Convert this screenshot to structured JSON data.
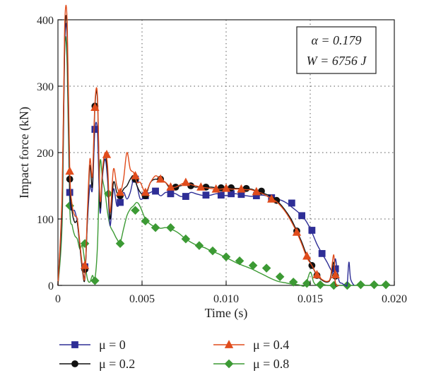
{
  "chart_data": {
    "type": "line",
    "xlabel": "Time (s)",
    "ylabel": "Impact force (kN)",
    "xlim": [
      0,
      0.02
    ],
    "ylim": [
      0,
      400
    ],
    "x_ticks": [
      "0",
      "0.005",
      "0.010",
      "0.015",
      "0.020"
    ],
    "y_ticks": [
      "0",
      "100",
      "200",
      "300",
      "400"
    ],
    "grid": true,
    "annotation": {
      "line1": "α = 0.179",
      "line2": "W = 6756 J"
    },
    "legend_position": "bottom",
    "series": [
      {
        "name": "μ = 0",
        "color": "#2e2e96",
        "marker": "square",
        "x": [
          0,
          0.00025,
          0.0004,
          0.00055,
          0.0007,
          0.00085,
          0.001,
          0.00115,
          0.0013,
          0.00145,
          0.0016,
          0.00175,
          0.0019,
          0.00205,
          0.0022,
          0.00235,
          0.0025,
          0.00265,
          0.0028,
          0.00295,
          0.0031,
          0.0033,
          0.0035,
          0.0037,
          0.0039,
          0.0041,
          0.0043,
          0.0045,
          0.0047,
          0.0049,
          0.0052,
          0.0055,
          0.0058,
          0.0061,
          0.0064,
          0.0067,
          0.007,
          0.0073,
          0.0076,
          0.0079,
          0.0082,
          0.0085,
          0.0088,
          0.0091,
          0.0094,
          0.0097,
          0.01,
          0.0103,
          0.0106,
          0.0109,
          0.0112,
          0.0115,
          0.0118,
          0.0121,
          0.0124,
          0.0127,
          0.013,
          0.0133,
          0.0136,
          0.0139,
          0.0142,
          0.0145,
          0.0148,
          0.0151,
          0.0154,
          0.0157,
          0.016,
          0.0162,
          0.0164,
          0.0165,
          0.0167,
          0.0169,
          0.0171,
          0.0172,
          0.0173,
          0.0174,
          0.0176
        ],
        "y": [
          0,
          120,
          360,
          370,
          140,
          115,
          112,
          95,
          60,
          28,
          15,
          95,
          150,
          145,
          235,
          230,
          110,
          165,
          190,
          160,
          90,
          145,
          120,
          125,
          140,
          130,
          140,
          160,
          150,
          130,
          135,
          140,
          142,
          135,
          140,
          140,
          138,
          134,
          135,
          140,
          138,
          136,
          135,
          136,
          138,
          137,
          135,
          137,
          138,
          136,
          135,
          134,
          135,
          136,
          135,
          132,
          130,
          128,
          124,
          118,
          112,
          105,
          95,
          80,
          62,
          48,
          35,
          25,
          18,
          40,
          8,
          3,
          0,
          2,
          35,
          10,
          0
        ],
        "marker_x": [
          0.0007,
          0.0016,
          0.0022,
          0.0037,
          0.0046,
          0.0052,
          0.0058,
          0.0067,
          0.0076,
          0.0088,
          0.0097,
          0.0103,
          0.0109,
          0.0118,
          0.0127,
          0.0139,
          0.0145,
          0.0151,
          0.0157,
          0.0165
        ],
        "marker_y": [
          140,
          28,
          235,
          125,
          160,
          135,
          142,
          138,
          134,
          136,
          136,
          138,
          137,
          135,
          132,
          124,
          105,
          83,
          48,
          25
        ]
      },
      {
        "name": "μ = 0.2",
        "color": "#111111",
        "marker": "circle",
        "x": [
          0,
          0.00025,
          0.0004,
          0.00055,
          0.0007,
          0.00085,
          0.001,
          0.00115,
          0.0013,
          0.00145,
          0.0016,
          0.00175,
          0.0019,
          0.00205,
          0.0022,
          0.00235,
          0.0025,
          0.00265,
          0.0028,
          0.00295,
          0.0031,
          0.0033,
          0.0035,
          0.0037,
          0.0039,
          0.0041,
          0.0043,
          0.0045,
          0.0047,
          0.0049,
          0.0052,
          0.0055,
          0.0058,
          0.0061,
          0.0064,
          0.0067,
          0.007,
          0.0073,
          0.0076,
          0.0079,
          0.0082,
          0.0085,
          0.0088,
          0.0091,
          0.0094,
          0.0097,
          0.01,
          0.0103,
          0.0106,
          0.0109,
          0.0112,
          0.0115,
          0.0118,
          0.0121,
          0.0124,
          0.0127,
          0.013,
          0.0133,
          0.0136,
          0.0139,
          0.0142,
          0.0145,
          0.0148,
          0.0151,
          0.0154,
          0.0157,
          0.016,
          0.0162,
          0.0164,
          0.0165,
          0.0167
        ],
        "y": [
          0,
          130,
          375,
          380,
          160,
          110,
          95,
          95,
          60,
          24,
          10,
          100,
          180,
          150,
          270,
          280,
          120,
          170,
          195,
          170,
          100,
          155,
          140,
          135,
          145,
          150,
          160,
          165,
          150,
          140,
          135,
          155,
          160,
          158,
          155,
          145,
          148,
          150,
          152,
          150,
          148,
          149,
          148,
          148,
          147,
          147,
          148,
          147,
          146,
          146,
          145,
          145,
          142,
          140,
          137,
          134,
          128,
          120,
          110,
          98,
          82,
          65,
          45,
          30,
          15,
          8,
          5,
          10,
          35,
          2,
          0
        ],
        "marker_x": [
          0.0007,
          0.0016,
          0.0022,
          0.0037,
          0.0046,
          0.0052,
          0.0061,
          0.007,
          0.0079,
          0.0088,
          0.0097,
          0.0103,
          0.0112,
          0.0121,
          0.013,
          0.0142,
          0.0151,
          0.0154,
          0.0165
        ],
        "marker_y": [
          160,
          24,
          270,
          135,
          160,
          135,
          160,
          148,
          150,
          148,
          147,
          147,
          146,
          142,
          128,
          82,
          30,
          15,
          14
        ]
      },
      {
        "name": "μ = 0.4",
        "color": "#e04c1c",
        "marker": "triangle",
        "x": [
          0,
          0.00025,
          0.0004,
          0.00055,
          0.0007,
          0.00085,
          0.001,
          0.00115,
          0.0013,
          0.00145,
          0.0016,
          0.00175,
          0.0019,
          0.00205,
          0.0022,
          0.00235,
          0.0025,
          0.00265,
          0.0028,
          0.00295,
          0.0031,
          0.0033,
          0.0035,
          0.0037,
          0.0039,
          0.0041,
          0.0043,
          0.0045,
          0.0047,
          0.0049,
          0.0052,
          0.0055,
          0.0058,
          0.0061,
          0.0064,
          0.0067,
          0.007,
          0.0073,
          0.0076,
          0.0079,
          0.0082,
          0.0085,
          0.0088,
          0.0091,
          0.0094,
          0.0097,
          0.01,
          0.0103,
          0.0106,
          0.0109,
          0.0112,
          0.0115,
          0.0118,
          0.0121,
          0.0124,
          0.0127,
          0.013,
          0.0133,
          0.0136,
          0.0139,
          0.0142,
          0.0145,
          0.0148,
          0.0151,
          0.0154,
          0.0157,
          0.016,
          0.0162,
          0.0164,
          0.0165,
          0.0167
        ],
        "y": [
          0,
          140,
          390,
          395,
          175,
          120,
          105,
          100,
          65,
          30,
          12,
          110,
          190,
          165,
          275,
          285,
          130,
          175,
          200,
          180,
          110,
          175,
          150,
          140,
          160,
          200,
          175,
          170,
          155,
          155,
          140,
          155,
          165,
          160,
          155,
          148,
          148,
          152,
          155,
          152,
          150,
          148,
          147,
          146,
          145,
          145,
          146,
          145,
          145,
          145,
          144,
          144,
          141,
          139,
          135,
          130,
          126,
          118,
          108,
          95,
          80,
          62,
          42,
          30,
          16,
          9,
          6,
          12,
          46,
          4,
          0
        ],
        "marker_x": [
          0.0007,
          0.0016,
          0.0022,
          0.0029,
          0.0037,
          0.0046,
          0.0052,
          0.0061,
          0.0067,
          0.0076,
          0.0085,
          0.0094,
          0.01,
          0.0109,
          0.0118,
          0.0127,
          0.0142,
          0.0148,
          0.0154,
          0.0165
        ],
        "marker_y": [
          172,
          30,
          268,
          197,
          140,
          165,
          140,
          160,
          148,
          155,
          148,
          145,
          146,
          145,
          141,
          130,
          80,
          44,
          16,
          16
        ]
      },
      {
        "name": "μ = 0.8",
        "color": "#3c9a34",
        "marker": "diamond",
        "x": [
          0,
          0.00025,
          0.0004,
          0.00055,
          0.0007,
          0.00085,
          0.001,
          0.00115,
          0.0013,
          0.00145,
          0.0016,
          0.00175,
          0.0019,
          0.00205,
          0.0022,
          0.00235,
          0.0025,
          0.00265,
          0.0028,
          0.00295,
          0.0031,
          0.0033,
          0.0035,
          0.0037,
          0.0039,
          0.0041,
          0.0043,
          0.0045,
          0.0047,
          0.0049,
          0.0052,
          0.0055,
          0.0058,
          0.0061,
          0.0064,
          0.0067,
          0.0071,
          0.0075,
          0.0079,
          0.0083,
          0.0087,
          0.0091,
          0.0095,
          0.0099,
          0.0103,
          0.0107,
          0.0111,
          0.0115,
          0.0119,
          0.0123,
          0.0127,
          0.0131,
          0.0135,
          0.0139,
          0.0143,
          0.0147,
          0.015,
          0.0152,
          0.0154,
          0.0157,
          0.016,
          0.0165,
          0.017,
          0.0175,
          0.018,
          0.0185,
          0.019,
          0.0195
        ],
        "y": [
          0,
          95,
          355,
          330,
          120,
          90,
          75,
          70,
          55,
          60,
          35,
          10,
          5,
          15,
          10,
          60,
          185,
          160,
          140,
          110,
          90,
          80,
          70,
          65,
          85,
          105,
          115,
          120,
          125,
          118,
          100,
          92,
          88,
          86,
          87,
          85,
          80,
          72,
          65,
          60,
          57,
          52,
          48,
          43,
          38,
          33,
          29,
          25,
          20,
          15,
          10,
          6,
          4,
          2,
          1,
          0,
          20,
          5,
          0,
          2,
          0,
          0,
          0,
          0,
          0,
          0,
          0,
          0
        ],
        "marker_x": [
          0.0007,
          0.0016,
          0.0022,
          0.003,
          0.0037,
          0.0046,
          0.0052,
          0.0058,
          0.0067,
          0.0076,
          0.0084,
          0.0092,
          0.01,
          0.0108,
          0.0116,
          0.0124,
          0.0132,
          0.014,
          0.0148,
          0.0156,
          0.0164,
          0.0172,
          0.018,
          0.0188,
          0.0195
        ],
        "marker_y": [
          120,
          63,
          7,
          138,
          63,
          113,
          97,
          87,
          87,
          70,
          60,
          52,
          43,
          37,
          30,
          26,
          13,
          5,
          3,
          1,
          0,
          0,
          1,
          1,
          1
        ]
      }
    ]
  }
}
